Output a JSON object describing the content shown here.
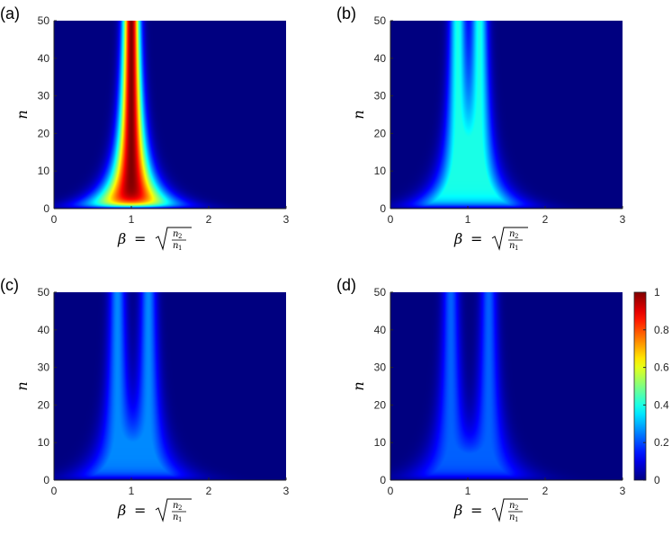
{
  "chart_data": {
    "type": "heatmap",
    "colormap": "jet",
    "x_range": [
      0,
      3
    ],
    "y_range": [
      0,
      50
    ],
    "x_ticks": [
      "0",
      "1",
      "2",
      "3"
    ],
    "y_ticks": [
      "0",
      "10",
      "20",
      "30",
      "40",
      "50"
    ],
    "ylabel": "n",
    "xlabel": {
      "lhs": "β",
      "eq": "=",
      "numerator": "n",
      "numerator_sub": "2",
      "denominator": "n",
      "denominator_sub": "1"
    },
    "panels": [
      {
        "label": "(a)",
        "peak_count": 1,
        "peak_positions": [
          1.0
        ],
        "max_intensity": 1.0
      },
      {
        "label": "(b)",
        "peak_count": 2,
        "peak_positions": [
          0.87,
          1.15
        ],
        "max_intensity": 0.4
      },
      {
        "label": "(c)",
        "peak_count": 2,
        "peak_positions": [
          0.82,
          1.22
        ],
        "max_intensity": 0.26
      },
      {
        "label": "(d)",
        "peak_count": 2,
        "peak_positions": [
          0.78,
          1.27
        ],
        "max_intensity": 0.22
      }
    ],
    "colorbar": {
      "min": 0,
      "max": 1,
      "ticks": [
        "0",
        "0.2",
        "0.4",
        "0.6",
        "0.8",
        "1"
      ]
    },
    "colors": {
      "frame": "#262626",
      "background": "#ffffff"
    }
  }
}
